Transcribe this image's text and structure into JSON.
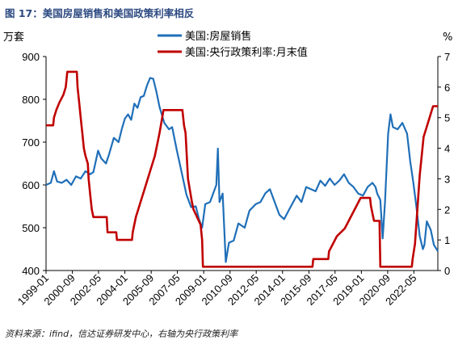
{
  "figure": {
    "title": "图 17：美国房屋销售和美国政策利率相反",
    "source": "资料来源：ifind，信达证券研发中心，右轴为央行政策利率"
  },
  "chart_data": {
    "type": "line",
    "left_unit": "万套",
    "right_unit": "%",
    "y_left": {
      "lim": [
        400,
        900
      ],
      "ticks": [
        400,
        500,
        600,
        700,
        800,
        900
      ]
    },
    "y_right": {
      "lim": [
        0,
        7
      ],
      "ticks": [
        0,
        1,
        2,
        3,
        4,
        5,
        6,
        7
      ]
    },
    "x_range": [
      1999.0,
      2023.85
    ],
    "x_ticks": [
      {
        "label": "1999-01",
        "t": 1999.0
      },
      {
        "label": "2000-09",
        "t": 2000.67
      },
      {
        "label": "2002-05",
        "t": 2002.33
      },
      {
        "label": "2004-01",
        "t": 2004.0
      },
      {
        "label": "2005-09",
        "t": 2005.67
      },
      {
        "label": "2007-05",
        "t": 2007.33
      },
      {
        "label": "2009-01",
        "t": 2009.0
      },
      {
        "label": "2010-09",
        "t": 2010.67
      },
      {
        "label": "2012-05",
        "t": 2012.33
      },
      {
        "label": "2014-01",
        "t": 2014.0
      },
      {
        "label": "2015-09",
        "t": 2015.67
      },
      {
        "label": "2017-05",
        "t": 2017.33
      },
      {
        "label": "2019-01",
        "t": 2019.0
      },
      {
        "label": "2020-09",
        "t": 2020.67
      },
      {
        "label": "2022-05",
        "t": 2022.33
      }
    ],
    "legend_position": "top-center",
    "grid": false,
    "series": [
      {
        "name": "美国:房屋销售",
        "axis": "left",
        "color": "#1f6fb8",
        "points": [
          [
            1999.0,
            600
          ],
          [
            1999.3,
            605
          ],
          [
            1999.5,
            632
          ],
          [
            1999.7,
            608
          ],
          [
            2000.0,
            605
          ],
          [
            2000.3,
            612
          ],
          [
            2000.6,
            600
          ],
          [
            2000.9,
            620
          ],
          [
            2001.2,
            615
          ],
          [
            2001.5,
            632
          ],
          [
            2001.8,
            625
          ],
          [
            2002.0,
            630
          ],
          [
            2002.3,
            680
          ],
          [
            2002.5,
            662
          ],
          [
            2002.8,
            650
          ],
          [
            2003.0,
            672
          ],
          [
            2003.3,
            710
          ],
          [
            2003.6,
            700
          ],
          [
            2003.8,
            730
          ],
          [
            2004.0,
            755
          ],
          [
            2004.2,
            765
          ],
          [
            2004.4,
            752
          ],
          [
            2004.6,
            790
          ],
          [
            2004.8,
            780
          ],
          [
            2005.0,
            805
          ],
          [
            2005.2,
            808
          ],
          [
            2005.4,
            832
          ],
          [
            2005.6,
            850
          ],
          [
            2005.8,
            848
          ],
          [
            2006.0,
            818
          ],
          [
            2006.2,
            782
          ],
          [
            2006.5,
            745
          ],
          [
            2006.8,
            730
          ],
          [
            2007.0,
            735
          ],
          [
            2007.3,
            680
          ],
          [
            2007.6,
            630
          ],
          [
            2007.9,
            578
          ],
          [
            2008.2,
            548
          ],
          [
            2008.5,
            550
          ],
          [
            2008.7,
            520
          ],
          [
            2008.9,
            500
          ],
          [
            2009.1,
            555
          ],
          [
            2009.4,
            560
          ],
          [
            2009.8,
            600
          ],
          [
            2009.9,
            685
          ],
          [
            2010.0,
            560
          ],
          [
            2010.2,
            580
          ],
          [
            2010.4,
            420
          ],
          [
            2010.6,
            465
          ],
          [
            2010.9,
            470
          ],
          [
            2011.2,
            510
          ],
          [
            2011.6,
            500
          ],
          [
            2011.9,
            540
          ],
          [
            2012.3,
            555
          ],
          [
            2012.6,
            560
          ],
          [
            2012.9,
            580
          ],
          [
            2013.2,
            590
          ],
          [
            2013.5,
            560
          ],
          [
            2013.8,
            530
          ],
          [
            2014.1,
            520
          ],
          [
            2014.5,
            548
          ],
          [
            2014.9,
            575
          ],
          [
            2015.2,
            560
          ],
          [
            2015.5,
            595
          ],
          [
            2015.8,
            590
          ],
          [
            2016.1,
            585
          ],
          [
            2016.4,
            610
          ],
          [
            2016.7,
            598
          ],
          [
            2017.0,
            615
          ],
          [
            2017.3,
            600
          ],
          [
            2017.6,
            610
          ],
          [
            2017.9,
            625
          ],
          [
            2018.2,
            605
          ],
          [
            2018.5,
            595
          ],
          [
            2018.8,
            580
          ],
          [
            2019.1,
            575
          ],
          [
            2019.4,
            595
          ],
          [
            2019.7,
            605
          ],
          [
            2019.9,
            595
          ],
          [
            2020.0,
            580
          ],
          [
            2020.2,
            565
          ],
          [
            2020.35,
            475
          ],
          [
            2020.5,
            560
          ],
          [
            2020.7,
            720
          ],
          [
            2020.85,
            765
          ],
          [
            2021.0,
            735
          ],
          [
            2021.3,
            730
          ],
          [
            2021.6,
            745
          ],
          [
            2021.9,
            720
          ],
          [
            2022.1,
            655
          ],
          [
            2022.3,
            605
          ],
          [
            2022.5,
            545
          ],
          [
            2022.7,
            480
          ],
          [
            2022.9,
            450
          ],
          [
            2023.0,
            460
          ],
          [
            2023.15,
            515
          ],
          [
            2023.4,
            495
          ],
          [
            2023.6,
            460
          ],
          [
            2023.85,
            445
          ]
        ]
      },
      {
        "name": "美国:央行政策利率:月末值",
        "axis": "right",
        "color": "#c00000",
        "points": [
          [
            1999.0,
            4.75
          ],
          [
            1999.45,
            4.75
          ],
          [
            1999.5,
            5.0
          ],
          [
            1999.65,
            5.25
          ],
          [
            1999.85,
            5.5
          ],
          [
            2000.1,
            5.75
          ],
          [
            2000.25,
            6.0
          ],
          [
            2000.35,
            6.5
          ],
          [
            2000.95,
            6.5
          ],
          [
            2001.0,
            6.0
          ],
          [
            2001.1,
            5.5
          ],
          [
            2001.2,
            5.0
          ],
          [
            2001.3,
            4.5
          ],
          [
            2001.4,
            4.0
          ],
          [
            2001.5,
            3.75
          ],
          [
            2001.65,
            3.5
          ],
          [
            2001.7,
            3.0
          ],
          [
            2001.8,
            2.5
          ],
          [
            2001.9,
            2.0
          ],
          [
            2002.0,
            1.75
          ],
          [
            2002.85,
            1.75
          ],
          [
            2002.9,
            1.25
          ],
          [
            2003.45,
            1.25
          ],
          [
            2003.5,
            1.0
          ],
          [
            2004.45,
            1.0
          ],
          [
            2004.5,
            1.25
          ],
          [
            2004.7,
            1.75
          ],
          [
            2005.0,
            2.25
          ],
          [
            2005.3,
            2.75
          ],
          [
            2005.6,
            3.25
          ],
          [
            2005.9,
            3.75
          ],
          [
            2006.2,
            4.5
          ],
          [
            2006.45,
            5.25
          ],
          [
            2007.65,
            5.25
          ],
          [
            2007.75,
            4.75
          ],
          [
            2007.85,
            4.5
          ],
          [
            2008.0,
            3.0
          ],
          [
            2008.25,
            2.25
          ],
          [
            2008.35,
            2.0
          ],
          [
            2008.8,
            1.5
          ],
          [
            2008.9,
            1.0
          ],
          [
            2008.95,
            0.125
          ],
          [
            2015.9,
            0.125
          ],
          [
            2015.95,
            0.375
          ],
          [
            2016.9,
            0.375
          ],
          [
            2016.95,
            0.625
          ],
          [
            2017.2,
            0.875
          ],
          [
            2017.45,
            1.125
          ],
          [
            2017.95,
            1.375
          ],
          [
            2018.2,
            1.625
          ],
          [
            2018.45,
            1.875
          ],
          [
            2018.7,
            2.125
          ],
          [
            2018.95,
            2.375
          ],
          [
            2019.55,
            2.375
          ],
          [
            2019.6,
            2.125
          ],
          [
            2019.7,
            1.875
          ],
          [
            2019.8,
            1.625
          ],
          [
            2020.15,
            1.625
          ],
          [
            2020.2,
            0.125
          ],
          [
            2022.2,
            0.125
          ],
          [
            2022.25,
            0.375
          ],
          [
            2022.4,
            0.875
          ],
          [
            2022.5,
            1.625
          ],
          [
            2022.7,
            3.125
          ],
          [
            2022.85,
            3.875
          ],
          [
            2022.95,
            4.375
          ],
          [
            2023.1,
            4.625
          ],
          [
            2023.25,
            4.875
          ],
          [
            2023.4,
            5.125
          ],
          [
            2023.55,
            5.375
          ],
          [
            2023.85,
            5.375
          ]
        ]
      }
    ]
  }
}
